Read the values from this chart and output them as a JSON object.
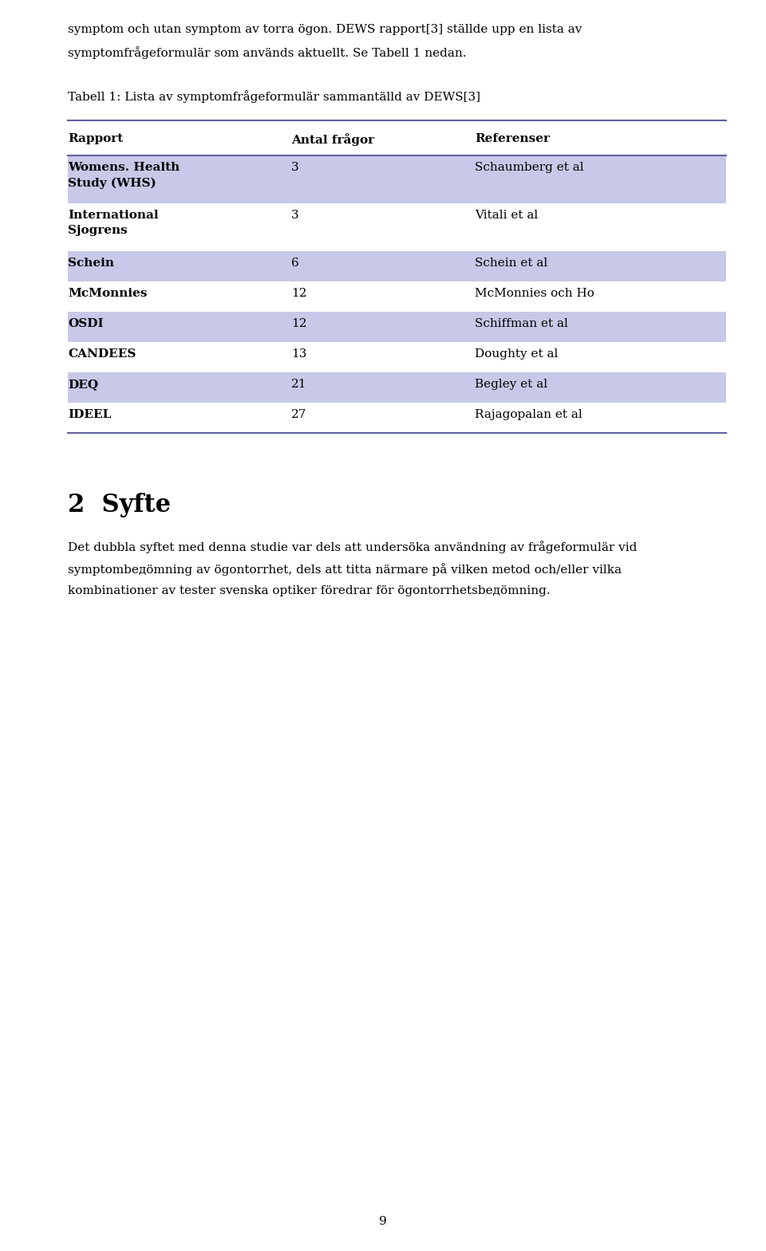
{
  "bg_color": "#ffffff",
  "text_color": "#000000",
  "page_number": "9",
  "top_paragraph_line1": "symptom och utan symptom av torra ögon. DEWS rapport[3] ställde upp en lista av",
  "top_paragraph_line2": "symptomfrågeformulär som används aktuellt. Se Tabell 1 nedan.",
  "table_caption": "Tabell 1: Lista av symptomfrågeformulär sammantälld av DEWS[3]",
  "col_headers": [
    "Rapport",
    "Antal frågor",
    "Referenser"
  ],
  "rows": [
    {
      "rapport": "Womens. Health\nStudy (WHS)",
      "antal": "3",
      "ref": "Schaumberg et al",
      "shaded": true,
      "multiline": true
    },
    {
      "rapport": "International\nSjogrens",
      "antal": "3",
      "ref": "Vitali et al",
      "shaded": false,
      "multiline": true
    },
    {
      "rapport": "Schein",
      "antal": "6",
      "ref": "Schein et al",
      "shaded": true,
      "multiline": false
    },
    {
      "rapport": "McMonnies",
      "antal": "12",
      "ref": "McMonnies och Ho",
      "shaded": false,
      "multiline": false
    },
    {
      "rapport": "OSDI",
      "antal": "12",
      "ref": "Schiffman et al",
      "shaded": true,
      "multiline": false
    },
    {
      "rapport": "CANDEES",
      "antal": "13",
      "ref": "Doughty et al",
      "shaded": false,
      "multiline": false
    },
    {
      "rapport": "DEQ",
      "antal": "21",
      "ref": "Begley et al",
      "shaded": true,
      "multiline": false
    },
    {
      "rapport": "IDEEL",
      "antal": "27",
      "ref": "Rajagopalan et al",
      "shaded": false,
      "multiline": false
    }
  ],
  "shaded_color": "#c8c8e8",
  "section_heading": "2  Syfte",
  "body_line1": "Det dubbla syftet med denna studie var dels att undersöka användning av frågeformulär vid",
  "body_line2": "symptombедömning av ögontorrhet, dels att titta närmare på vilken metod och/eller vilka",
  "body_line3": "kombinationer av tester svenska optiker föredrar för ögontorrhetsbедömning.",
  "table_fontsize": 11,
  "body_fontsize": 11,
  "caption_fontsize": 11,
  "heading_fontsize": 22
}
